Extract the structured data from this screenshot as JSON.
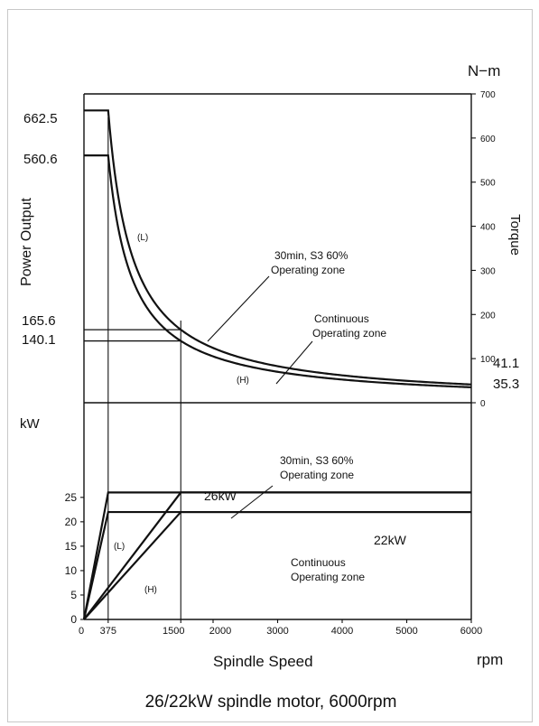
{
  "chart_data": [
    {
      "type": "line",
      "description": "Torque and power output vs spindle speed (upper panel)",
      "y_left_label": "Power Output",
      "y_right_label": "Torque",
      "y_right_unit": "N−m",
      "y_right_ticks": [
        "700",
        "600",
        "500",
        "400",
        "300",
        "200",
        "100",
        "0"
      ],
      "y_right_range": [
        0,
        700
      ],
      "left_value_labels": [
        "662.5",
        "560.6",
        "165.6",
        "140.1"
      ],
      "right_value_labels": [
        "41.1",
        "35.3"
      ],
      "series": [
        {
          "name": "(L)",
          "curve": "30min, S3 60%",
          "x": [
            0,
            375,
            1500,
            6000
          ],
          "y": [
            662.5,
            662.5,
            165.6,
            41.1
          ]
        },
        {
          "name": "(H)",
          "curve": "Continuous",
          "x": [
            0,
            375,
            1500,
            6000
          ],
          "y": [
            560.6,
            560.6,
            140.1,
            35.3
          ]
        }
      ],
      "annotations": {
        "label_L": "(L)",
        "label_H": "(H)",
        "s3_line1": "30min, S3 60%",
        "s3_line2": "Operating zone",
        "cont_line1": "Continuous",
        "cont_line2": "Operating zone"
      }
    },
    {
      "type": "line",
      "description": "Power vs spindle speed (lower panel)",
      "y_label": "kW",
      "y_ticks": [
        "25",
        "20",
        "15",
        "10",
        "5",
        "0"
      ],
      "y_range": [
        0,
        27
      ],
      "x_ticks": [
        "375",
        "1500",
        "2000",
        "3000",
        "4000",
        "5000",
        "6000"
      ],
      "x_range": [
        0,
        6000
      ],
      "x_label": "Spindle Speed",
      "x_unit": "rpm",
      "series": [
        {
          "name": "(L)",
          "curve": "30min, S3 60%",
          "x": [
            0,
            375,
            6000
          ],
          "y": [
            0,
            26,
            26
          ]
        },
        {
          "name": "(L)",
          "curve": "Continuous",
          "x": [
            0,
            375,
            6000
          ],
          "y": [
            0,
            22,
            22
          ]
        },
        {
          "name": "(H)",
          "curve": "30min, S3 60%",
          "x": [
            0,
            1500,
            6000
          ],
          "y": [
            0,
            26,
            26
          ]
        },
        {
          "name": "(H)",
          "curve": "Continuous",
          "x": [
            0,
            1500,
            6000
          ],
          "y": [
            0,
            22,
            22
          ]
        }
      ],
      "annotations": {
        "kw26": "26kW",
        "kw22": "22kW",
        "label_L": "(L)",
        "label_H": "(H)",
        "s3_line1": "30min, S3 60%",
        "s3_line2": "Operating zone",
        "cont_line1": "Continuous",
        "cont_line2": "Operating zone"
      }
    }
  ],
  "caption": "26/22kW spindle motor, 6000rpm"
}
